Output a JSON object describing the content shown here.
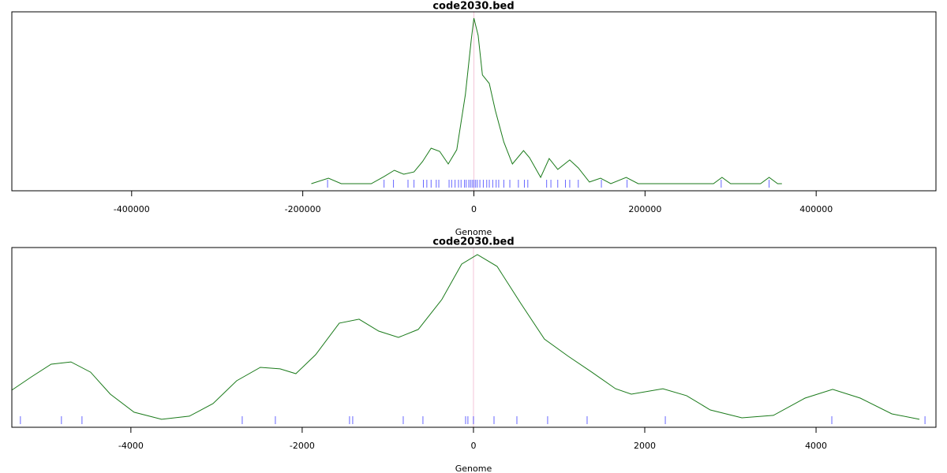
{
  "chart_data": [
    {
      "type": "line",
      "title": "code2030.bed",
      "xlabel": "Genome",
      "color": "#1a7a1a",
      "rug_color": "#0000ff",
      "xlim": [
        -540000,
        540000
      ],
      "ylim": [
        -0.043,
        1.038
      ],
      "xticks": [
        -400000,
        -200000,
        0,
        200000,
        400000
      ],
      "x": [
        -190000,
        -170000,
        -155000,
        -120000,
        -105000,
        -93000,
        -82000,
        -70000,
        -60000,
        -50000,
        -40000,
        -30000,
        -20000,
        -10000,
        -3000,
        0,
        5000,
        10000,
        18000,
        25000,
        35000,
        45000,
        58000,
        65000,
        78000,
        88000,
        98000,
        112000,
        122000,
        135000,
        148000,
        160000,
        178000,
        192000,
        280000,
        290000,
        300000,
        335000,
        345000,
        355000,
        360000
      ],
      "values": [
        0,
        0.033,
        0,
        0,
        0.043,
        0.081,
        0.057,
        0.071,
        0.133,
        0.214,
        0.195,
        0.119,
        0.205,
        0.538,
        0.871,
        1,
        0.895,
        0.657,
        0.605,
        0.443,
        0.252,
        0.119,
        0.2,
        0.157,
        0.038,
        0.152,
        0.086,
        0.143,
        0.095,
        0.01,
        0.033,
        0,
        0.038,
        0,
        0,
        0.038,
        0,
        0,
        0.038,
        0,
        0
      ],
      "rug": [
        -171000,
        -105000,
        -94000,
        -77000,
        -70000,
        -59000,
        -55000,
        -50000,
        -44000,
        -41000,
        -29000,
        -26000,
        -22000,
        -18000,
        -15000,
        -11000,
        -9000,
        -6000,
        -4000,
        -2000,
        0,
        2000,
        4000,
        7000,
        11000,
        15000,
        18000,
        22000,
        26000,
        29000,
        35000,
        42000,
        52000,
        59000,
        63000,
        85000,
        90000,
        98000,
        107000,
        112000,
        122000,
        149000,
        179000,
        289000,
        345000
      ]
    },
    {
      "type": "line",
      "title": "code2030.bed",
      "xlabel": "Genome",
      "color": "#1a7a1a",
      "rug_color": "#0000ff",
      "xlim": [
        -5390,
        5400
      ],
      "ylim": [
        -0.043,
        1.043
      ],
      "xticks": [
        -4000,
        -2000,
        0,
        2000,
        4000
      ],
      "x": [
        -5392,
        -5161,
        -4931,
        -4700,
        -4470,
        -4240,
        -3963,
        -3641,
        -3318,
        -3041,
        -2765,
        -2488,
        -2258,
        -2074,
        -1843,
        -1567,
        -1336,
        -1106,
        -876,
        -645,
        -369,
        -138,
        46,
        276,
        553,
        829,
        1106,
        1382,
        1659,
        1843,
        2212,
        2488,
        2765,
        3134,
        3502,
        3871,
        4194,
        4516,
        4885,
        5207
      ],
      "values": [
        0.181,
        0.262,
        0.338,
        0.352,
        0.29,
        0.157,
        0.048,
        0.005,
        0.024,
        0.1,
        0.238,
        0.319,
        0.31,
        0.281,
        0.395,
        0.586,
        0.61,
        0.538,
        0.5,
        0.548,
        0.729,
        0.943,
        1,
        0.929,
        0.705,
        0.49,
        0.386,
        0.29,
        0.19,
        0.157,
        0.19,
        0.148,
        0.062,
        0.014,
        0.029,
        0.133,
        0.186,
        0.133,
        0.038,
        0.005
      ],
      "rug": [
        -5290,
        -4811,
        -4571,
        -2700,
        -2313,
        -1447,
        -1410,
        -820,
        -590,
        -92,
        -65,
        0,
        240,
        507,
        866,
        1327,
        2240,
        4184,
        5272
      ]
    }
  ]
}
